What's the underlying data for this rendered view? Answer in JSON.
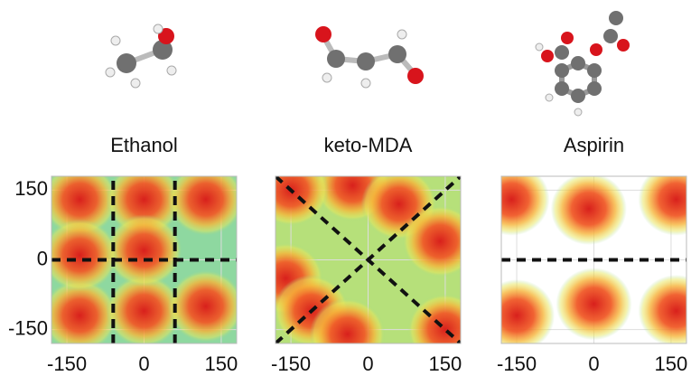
{
  "chart_data": [
    {
      "type": "heatmap",
      "title": "Ethanol",
      "xlim": [
        -180,
        180
      ],
      "ylim": [
        -180,
        180
      ],
      "xticks": [
        -150,
        0,
        150
      ],
      "yticks": [
        -150,
        0,
        150
      ],
      "background": "#8ed8a0",
      "hotspots": {
        "x": [
          -125,
          0,
          120,
          -125,
          0,
          0,
          -125,
          120
        ],
        "y": [
          130,
          130,
          130,
          -120,
          -110,
          20,
          10,
          -100
        ]
      },
      "lines": [
        {
          "x": [
            -180,
            180
          ],
          "y": [
            0,
            0
          ]
        },
        {
          "x": [
            -60,
            -60
          ],
          "y": [
            -180,
            180
          ]
        },
        {
          "x": [
            60,
            60
          ],
          "y": [
            -180,
            180
          ]
        }
      ]
    },
    {
      "type": "heatmap",
      "title": "keto-MDA",
      "xlim": [
        -180,
        180
      ],
      "ylim": [
        -180,
        180
      ],
      "xticks": [
        -150,
        0,
        150
      ],
      "yticks": [
        -150,
        0,
        150
      ],
      "background": "#b6e07a",
      "hotspots": {
        "x": [
          -30,
          60,
          140,
          -160,
          -110,
          -40,
          -150,
          150
        ],
        "y": [
          160,
          120,
          40,
          -40,
          -110,
          -160,
          150,
          -150
        ]
      },
      "lines": [
        {
          "x": [
            -180,
            180
          ],
          "y": [
            180,
            -180
          ]
        },
        {
          "x": [
            -180,
            180
          ],
          "y": [
            -180,
            180
          ]
        }
      ]
    },
    {
      "type": "heatmap",
      "title": "Aspirin",
      "xlim": [
        -180,
        180
      ],
      "ylim": [
        -180,
        180
      ],
      "xticks": [
        -150,
        0,
        150
      ],
      "yticks": [
        -150,
        0,
        150
      ],
      "background": "#ffffff",
      "hotspots": {
        "x": [
          -10,
          0,
          -150,
          160,
          -160,
          160
        ],
        "y": [
          110,
          -95,
          -120,
          -110,
          130,
          130
        ]
      },
      "lines": [
        {
          "x": [
            -180,
            180
          ],
          "y": [
            0,
            0
          ]
        }
      ]
    }
  ]
}
